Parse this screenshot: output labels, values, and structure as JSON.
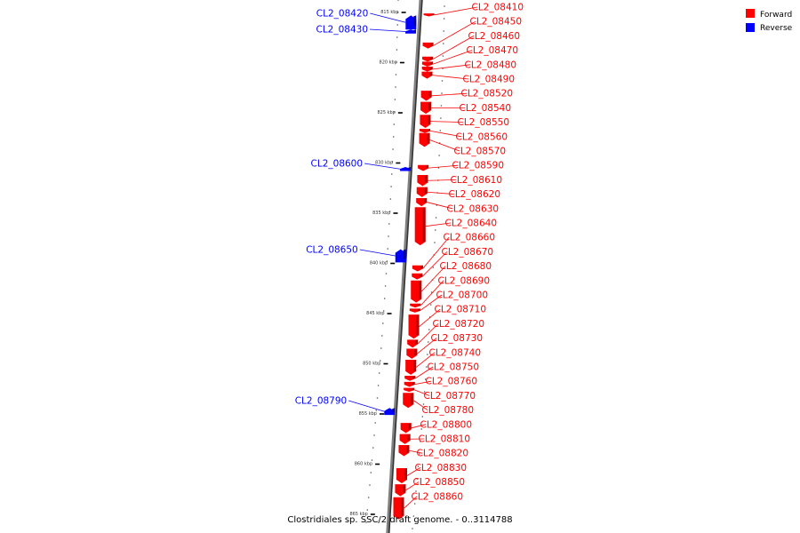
{
  "caption": "Clostridiales sp. SSC/2 draft genome. - 0..3114788",
  "legend": [
    {
      "label": "Forward",
      "color": "#ff0000"
    },
    {
      "label": "Reverse",
      "color": "#0000ff"
    }
  ],
  "colors": {
    "forward": "#ff0000",
    "reverse": "#0000ff",
    "backbone": "#808080"
  },
  "ticks": [
    {
      "kbp": 815,
      "label": "815 kbp"
    },
    {
      "kbp": 820,
      "label": "820 kbp"
    },
    {
      "kbp": 825,
      "label": "825 kbp"
    },
    {
      "kbp": 830,
      "label": "830 kbp"
    },
    {
      "kbp": 835,
      "label": "835 kbp"
    },
    {
      "kbp": 840,
      "label": "840 kbp"
    },
    {
      "kbp": 845,
      "label": "845 kbp"
    },
    {
      "kbp": 850,
      "label": "850 kbp"
    },
    {
      "kbp": 855,
      "label": "855 kbp"
    },
    {
      "kbp": 860,
      "label": "860 kbp"
    },
    {
      "kbp": 865,
      "label": "865 kbp"
    }
  ],
  "genes": [
    {
      "id": "CL2_08410",
      "strand": "forward",
      "start_kbp": 815.1,
      "end_kbp": 815.4
    },
    {
      "id": "CL2_08420",
      "strand": "reverse",
      "start_kbp": 815.3,
      "end_kbp": 816.7
    },
    {
      "id": "CL2_08430",
      "strand": "reverse",
      "start_kbp": 816.7,
      "end_kbp": 817.1
    },
    {
      "id": "CL2_08450",
      "strand": "forward",
      "start_kbp": 818.0,
      "end_kbp": 818.6
    },
    {
      "id": "CL2_08460",
      "strand": "forward",
      "start_kbp": 819.4,
      "end_kbp": 819.9
    },
    {
      "id": "CL2_08470",
      "strand": "forward",
      "start_kbp": 819.9,
      "end_kbp": 820.4
    },
    {
      "id": "CL2_08480",
      "strand": "forward",
      "start_kbp": 820.4,
      "end_kbp": 820.9
    },
    {
      "id": "CL2_08490",
      "strand": "forward",
      "start_kbp": 820.9,
      "end_kbp": 821.6
    },
    {
      "id": "CL2_08520",
      "strand": "forward",
      "start_kbp": 822.8,
      "end_kbp": 823.8
    },
    {
      "id": "CL2_08540",
      "strand": "forward",
      "start_kbp": 823.9,
      "end_kbp": 825.1
    },
    {
      "id": "CL2_08550",
      "strand": "forward",
      "start_kbp": 825.2,
      "end_kbp": 826.5
    },
    {
      "id": "CL2_08560",
      "strand": "forward",
      "start_kbp": 826.6,
      "end_kbp": 827.0
    },
    {
      "id": "CL2_08570",
      "strand": "forward",
      "start_kbp": 827.0,
      "end_kbp": 828.4
    },
    {
      "id": "CL2_08590",
      "strand": "forward",
      "start_kbp": 830.2,
      "end_kbp": 830.8
    },
    {
      "id": "CL2_08600",
      "strand": "reverse",
      "start_kbp": 830.4,
      "end_kbp": 830.8
    },
    {
      "id": "CL2_08610",
      "strand": "forward",
      "start_kbp": 831.2,
      "end_kbp": 832.3
    },
    {
      "id": "CL2_08620",
      "strand": "forward",
      "start_kbp": 832.4,
      "end_kbp": 833.4
    },
    {
      "id": "CL2_08630",
      "strand": "forward",
      "start_kbp": 833.5,
      "end_kbp": 834.3
    },
    {
      "id": "CL2_08640",
      "strand": "forward",
      "start_kbp": 834.4,
      "end_kbp": 838.2
    },
    {
      "id": "CL2_08650",
      "strand": "reverse",
      "start_kbp": 838.6,
      "end_kbp": 839.9
    },
    {
      "id": "CL2_08660",
      "strand": "forward",
      "start_kbp": 840.2,
      "end_kbp": 840.8
    },
    {
      "id": "CL2_08670",
      "strand": "forward",
      "start_kbp": 841.0,
      "end_kbp": 841.6
    },
    {
      "id": "CL2_08680",
      "strand": "forward",
      "start_kbp": 841.7,
      "end_kbp": 843.9
    },
    {
      "id": "CL2_08690",
      "strand": "forward",
      "start_kbp": 844.0,
      "end_kbp": 844.4
    },
    {
      "id": "CL2_08700",
      "strand": "forward",
      "start_kbp": 844.5,
      "end_kbp": 844.9
    },
    {
      "id": "CL2_08710",
      "strand": "forward",
      "start_kbp": 845.1,
      "end_kbp": 847.5
    },
    {
      "id": "CL2_08720",
      "strand": "forward",
      "start_kbp": 847.6,
      "end_kbp": 848.4
    },
    {
      "id": "CL2_08730",
      "strand": "forward",
      "start_kbp": 848.5,
      "end_kbp": 849.5
    },
    {
      "id": "CL2_08740",
      "strand": "forward",
      "start_kbp": 849.6,
      "end_kbp": 851.1
    },
    {
      "id": "CL2_08750",
      "strand": "forward",
      "start_kbp": 851.2,
      "end_kbp": 851.7
    },
    {
      "id": "CL2_08760",
      "strand": "forward",
      "start_kbp": 851.8,
      "end_kbp": 852.3
    },
    {
      "id": "CL2_08770",
      "strand": "forward",
      "start_kbp": 852.4,
      "end_kbp": 852.8
    },
    {
      "id": "CL2_08780",
      "strand": "forward",
      "start_kbp": 852.9,
      "end_kbp": 854.4
    },
    {
      "id": "CL2_08790",
      "strand": "reverse",
      "start_kbp": 854.4,
      "end_kbp": 855.1
    },
    {
      "id": "CL2_08800",
      "strand": "forward",
      "start_kbp": 855.9,
      "end_kbp": 856.9
    },
    {
      "id": "CL2_08810",
      "strand": "forward",
      "start_kbp": 857.0,
      "end_kbp": 858.0
    },
    {
      "id": "CL2_08820",
      "strand": "forward",
      "start_kbp": 858.1,
      "end_kbp": 859.2
    },
    {
      "id": "CL2_08830",
      "strand": "forward",
      "start_kbp": 860.4,
      "end_kbp": 861.9
    },
    {
      "id": "CL2_08850",
      "strand": "forward",
      "start_kbp": 862.0,
      "end_kbp": 863.2
    },
    {
      "id": "CL2_08860",
      "strand": "forward",
      "start_kbp": 863.3,
      "end_kbp": 865.5
    }
  ]
}
